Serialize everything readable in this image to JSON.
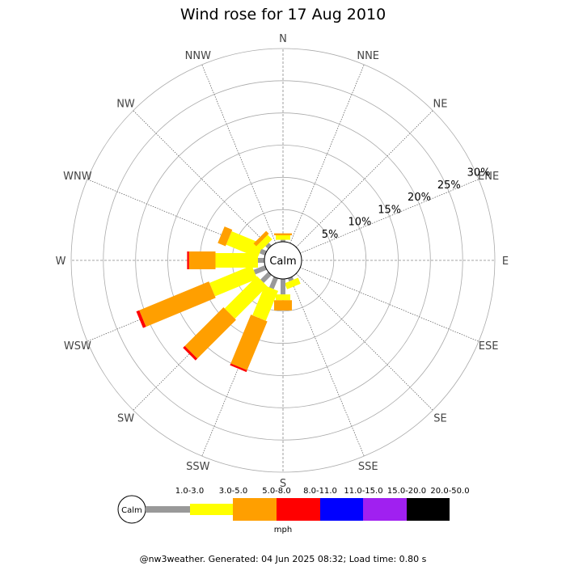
{
  "chart_data": {
    "type": "wind-rose",
    "title": "Wind rose for 17 Aug 2010",
    "calm_label": "Calm",
    "units": "mph",
    "footer": "@nw3weather. Generated: 04 Jun 2025 08:32; Load time: 0.80 s",
    "directions": [
      "N",
      "NNE",
      "NE",
      "ENE",
      "E",
      "ESE",
      "SE",
      "SSE",
      "S",
      "SSW",
      "SW",
      "WSW",
      "W",
      "WNW",
      "NW",
      "NNW"
    ],
    "radial_ticks": [
      "5%",
      "10%",
      "15%",
      "20%",
      "25%",
      "30%"
    ],
    "radial_max": 30,
    "speed_bins": [
      {
        "label": "1.0-3.0",
        "color": "#999999"
      },
      {
        "label": "3.0-5.0",
        "color": "#ffff00"
      },
      {
        "label": "5.0-8.0",
        "color": "#ff9f00"
      },
      {
        "label": "8.0-11.0",
        "color": "#ff0000"
      },
      {
        "label": "11.0-15.0",
        "color": "#0000ff"
      },
      {
        "label": "15.0-20.0",
        "color": "#a020f0"
      },
      {
        "label": "20.0-50.0",
        "color": "#000000"
      }
    ],
    "data_cumulative_percent": [
      {
        "direction": "N",
        "bins": [
          0.3,
          1.0,
          1.3
        ]
      },
      {
        "direction": "NNE",
        "bins": []
      },
      {
        "direction": "NE",
        "bins": []
      },
      {
        "direction": "ENE",
        "bins": []
      },
      {
        "direction": "E",
        "bins": []
      },
      {
        "direction": "ESE",
        "bins": []
      },
      {
        "direction": "SE",
        "bins": []
      },
      {
        "direction": "SSE",
        "bins": [
          0.5,
          1.5
        ]
      },
      {
        "direction": "S",
        "bins": [
          2.4,
          3.3,
          4.9
        ]
      },
      {
        "direction": "SSW",
        "bins": [
          1.8,
          6.8,
          15.0,
          15.3
        ]
      },
      {
        "direction": "SW",
        "bins": [
          1.7,
          8.8,
          17.3,
          17.7
        ]
      },
      {
        "direction": "WSW",
        "bins": [
          1.9,
          9.0,
          20.7,
          21.2
        ]
      },
      {
        "direction": "W",
        "bins": [
          1.0,
          7.6,
          11.7,
          12.0
        ]
      },
      {
        "direction": "WNW",
        "bins": [
          0.9,
          6.2,
          7.5
        ]
      },
      {
        "direction": "NW",
        "bins": [
          0.6,
          1.6,
          2.2
        ]
      },
      {
        "direction": "NNW",
        "bins": []
      }
    ]
  }
}
